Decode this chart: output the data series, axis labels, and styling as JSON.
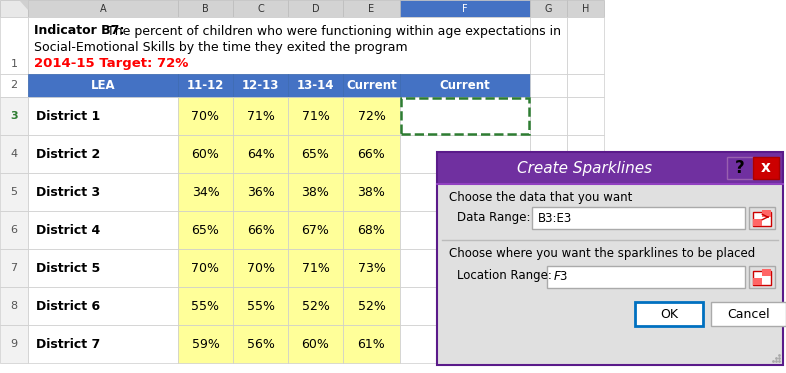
{
  "title_bold": "Indicator B7:",
  "title_line1_normal": "The percent of children who were functioning within age expectations in",
  "title_line2": "Social-Emotional Skills by the time they exited the program",
  "target_text": "2014-15 Target: 72%",
  "col_headers": [
    "LEA",
    "11-12",
    "12-13",
    "13-14",
    "Current",
    "Current"
  ],
  "col_letters": [
    "A",
    "B",
    "C",
    "D",
    "E",
    "F",
    "G",
    "H"
  ],
  "rows": [
    {
      "name": "District 1",
      "vals": [
        "70%",
        "71%",
        "71%",
        "72%"
      ]
    },
    {
      "name": "District 2",
      "vals": [
        "60%",
        "64%",
        "65%",
        "66%"
      ]
    },
    {
      "name": "District 3",
      "vals": [
        "34%",
        "36%",
        "38%",
        "38%"
      ]
    },
    {
      "name": "District 4",
      "vals": [
        "65%",
        "66%",
        "67%",
        "68%"
      ]
    },
    {
      "name": "District 5",
      "vals": [
        "70%",
        "70%",
        "71%",
        "73%"
      ]
    },
    {
      "name": "District 6",
      "vals": [
        "55%",
        "55%",
        "52%",
        "52%"
      ]
    },
    {
      "name": "District 7",
      "vals": [
        "59%",
        "56%",
        "60%",
        "61%"
      ]
    }
  ],
  "header_bg": "#4472C4",
  "header_fg": "#FFFFFF",
  "cell_bg": "#FFFF99",
  "letter_hdr_bg": "#D3D3D3",
  "letter_hdr_fg": "#333333",
  "col_f_letter_bg": "#4472C4",
  "col_f_letter_fg": "#FFFFFF",
  "row_num_fg": "#555555",
  "row3_num_fg": "#2E7D32",
  "target_fg": "#FF0000",
  "grid_line": "#C8C8C8",
  "sparkline_border": "#2E7D32",
  "dialog_title_bg": "#7030A0",
  "dialog_body_bg": "#E0E0E0",
  "dialog_border": "#5A1A8A",
  "dialog_title_text": "Create Sparklines",
  "dialog_text1": "Choose the data that you want",
  "dialog_label1": "Data Range:",
  "dialog_val1": "B3:E3",
  "dialog_text2": "Choose where you want the sparklines to be placed",
  "dialog_label2": "Location Range:",
  "dialog_val2": "$F$3",
  "dialog_ok": "OK",
  "dialog_cancel": "Cancel",
  "qbtn_bg": "#7030A0",
  "xbtn_bg": "#CC0000",
  "input_border": "#AAAAAA",
  "ok_border": "#0070C0",
  "cancel_border": "#AAAAAA"
}
